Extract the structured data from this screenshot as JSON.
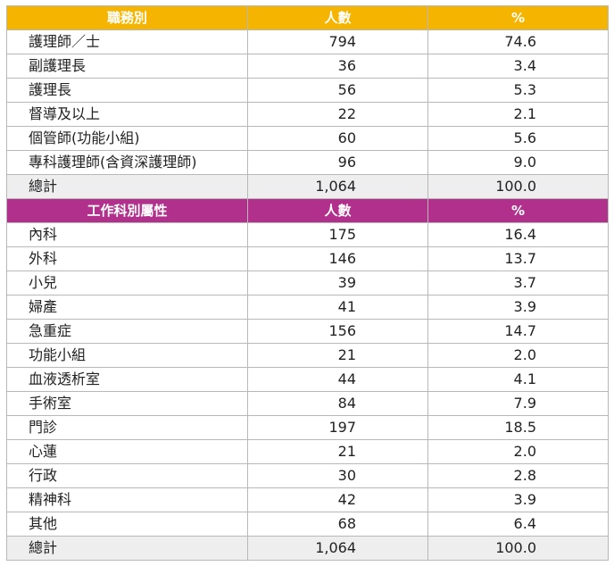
{
  "section1": {
    "headers": [
      "職務別",
      "人數",
      "%"
    ],
    "rows": [
      {
        "label": "護理師／士",
        "count": "794",
        "pct": "74.6"
      },
      {
        "label": "副護理長",
        "count": "36",
        "pct": "3.4"
      },
      {
        "label": "護理長",
        "count": "56",
        "pct": "5.3"
      },
      {
        "label": "督導及以上",
        "count": "22",
        "pct": "2.1"
      },
      {
        "label": "個管師(功能小組)",
        "count": "60",
        "pct": "5.6"
      },
      {
        "label": "專科護理師(含資深護理師)",
        "count": "96",
        "pct": "9.0"
      }
    ],
    "total": {
      "label": "總計",
      "count": "1,064",
      "pct": "100.0"
    }
  },
  "section2": {
    "headers": [
      "工作科別屬性",
      "人數",
      "%"
    ],
    "rows": [
      {
        "label": "內科",
        "count": "175",
        "pct": "16.4"
      },
      {
        "label": "外科",
        "count": "146",
        "pct": "13.7"
      },
      {
        "label": "小兒",
        "count": "39",
        "pct": "3.7"
      },
      {
        "label": "婦產",
        "count": "41",
        "pct": "3.9"
      },
      {
        "label": "急重症",
        "count": "156",
        "pct": "14.7"
      },
      {
        "label": "功能小組",
        "count": "21",
        "pct": "2.0"
      },
      {
        "label": "血液透析室",
        "count": "44",
        "pct": "4.1"
      },
      {
        "label": "手術室",
        "count": "84",
        "pct": "7.9"
      },
      {
        "label": "門診",
        "count": "197",
        "pct": "18.5"
      },
      {
        "label": "心蓮",
        "count": "21",
        "pct": "2.0"
      },
      {
        "label": "行政",
        "count": "30",
        "pct": "2.8"
      },
      {
        "label": "精神科",
        "count": "42",
        "pct": "3.9"
      },
      {
        "label": "其他",
        "count": "68",
        "pct": "6.4"
      }
    ],
    "total": {
      "label": "總計",
      "count": "1,064",
      "pct": "100.0"
    }
  },
  "colors": {
    "header1": "#f5b400",
    "header2": "#b0308c",
    "total_bg": "#eeeeee"
  }
}
